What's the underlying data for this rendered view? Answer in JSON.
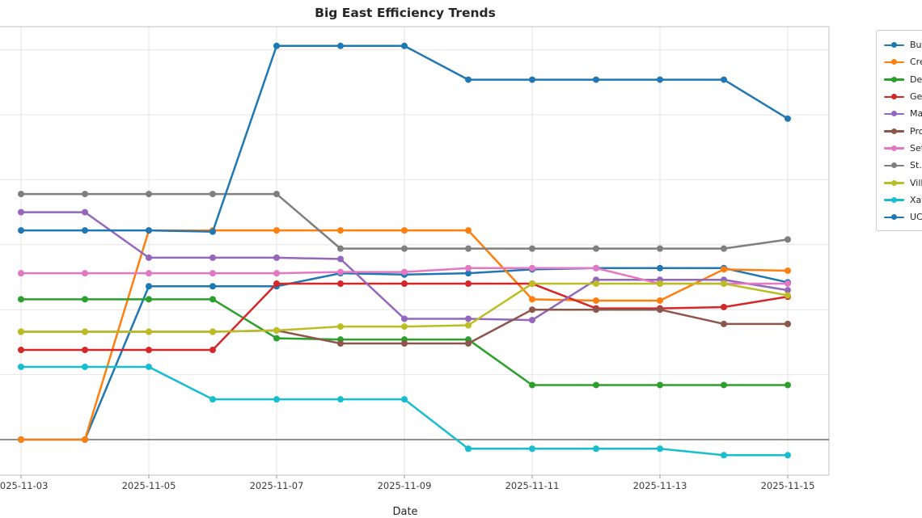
{
  "title": "Big East Efficiency Trends",
  "xlabel": "Date",
  "chart_data": {
    "type": "line",
    "title": "Big East Efficiency Trends",
    "xlabel": "Date",
    "ylabel": "",
    "x": [
      "2025-11-03",
      "2025-11-04",
      "2025-11-05",
      "2025-11-06",
      "2025-11-07",
      "2025-11-08",
      "2025-11-09",
      "2025-11-10",
      "2025-11-11",
      "2025-11-12",
      "2025-11-13",
      "2025-11-14",
      "2025-11-15"
    ],
    "x_tick_labels": [
      "2025-11-03",
      "2025-11-05",
      "2025-11-07",
      "2025-11-09",
      "2025-11-11",
      "2025-11-13",
      "2025-11-15"
    ],
    "series": [
      {
        "name": "Butler",
        "color": "#1f77b4",
        "values": [
          0.0,
          0.0,
          11.8,
          11.8,
          11.8,
          12.8,
          12.7,
          12.8,
          13.1,
          13.2,
          13.2,
          13.2,
          12.1
        ]
      },
      {
        "name": "Creighton",
        "color": "#ff7f0e",
        "values": [
          0.0,
          0.0,
          16.1,
          16.1,
          16.1,
          16.1,
          16.1,
          16.1,
          10.8,
          10.7,
          10.7,
          13.1,
          13.0
        ]
      },
      {
        "name": "DePaul",
        "color": "#2ca02c",
        "values": [
          10.8,
          10.8,
          10.8,
          10.8,
          7.8,
          7.7,
          7.7,
          7.7,
          4.2,
          4.2,
          4.2,
          4.2,
          4.2
        ]
      },
      {
        "name": "Georgetown",
        "color": "#d62728",
        "values": [
          6.9,
          6.9,
          6.9,
          6.9,
          12.0,
          12.0,
          12.0,
          12.0,
          12.0,
          10.1,
          10.1,
          10.2,
          11.0
        ]
      },
      {
        "name": "Marquette",
        "color": "#9467bd",
        "values": [
          17.5,
          17.5,
          14.0,
          14.0,
          14.0,
          13.9,
          9.3,
          9.3,
          9.2,
          12.3,
          12.3,
          12.3,
          11.5
        ]
      },
      {
        "name": "Providence",
        "color": "#8c564b",
        "values": [
          8.3,
          8.3,
          8.3,
          8.3,
          8.4,
          7.4,
          7.4,
          7.4,
          10.0,
          10.0,
          10.0,
          8.9,
          8.9
        ]
      },
      {
        "name": "Seton Hall",
        "color": "#e377c2",
        "values": [
          12.8,
          12.8,
          12.8,
          12.8,
          12.8,
          12.9,
          12.9,
          13.2,
          13.2,
          13.2,
          12.0,
          12.0,
          12.0
        ]
      },
      {
        "name": "St. John's",
        "color": "#7f7f7f",
        "values": [
          18.9,
          18.9,
          18.9,
          18.9,
          18.9,
          14.7,
          14.7,
          14.7,
          14.7,
          14.7,
          14.7,
          14.7,
          15.4
        ]
      },
      {
        "name": "Villanova",
        "color": "#bcbd22",
        "values": [
          8.3,
          8.3,
          8.3,
          8.3,
          8.4,
          8.7,
          8.7,
          8.8,
          12.0,
          12.0,
          12.0,
          12.0,
          11.1
        ]
      },
      {
        "name": "Xavier",
        "color": "#17becf",
        "values": [
          5.6,
          5.6,
          5.6,
          3.1,
          3.1,
          3.1,
          3.1,
          -0.7,
          -0.7,
          -0.7,
          -0.7,
          -1.2,
          -1.2
        ]
      },
      {
        "name": "UConn",
        "color": "#1f77b4",
        "values": [
          16.1,
          16.1,
          16.1,
          16.0,
          30.3,
          30.3,
          30.3,
          27.7,
          27.7,
          27.7,
          27.7,
          27.7,
          24.7
        ]
      }
    ],
    "ylim": [
      -2.7,
      31.8
    ],
    "y_gridlines_estimated": [
      0,
      5,
      10,
      15,
      20,
      25,
      30
    ],
    "zero_line": 0,
    "grid": true,
    "legend_position": "outside-right (clipped by image edge)",
    "colors": {
      "grid": "#e6e6e6",
      "spine": "#cccccc",
      "zero_line": "#808080",
      "text": "#262626"
    }
  }
}
